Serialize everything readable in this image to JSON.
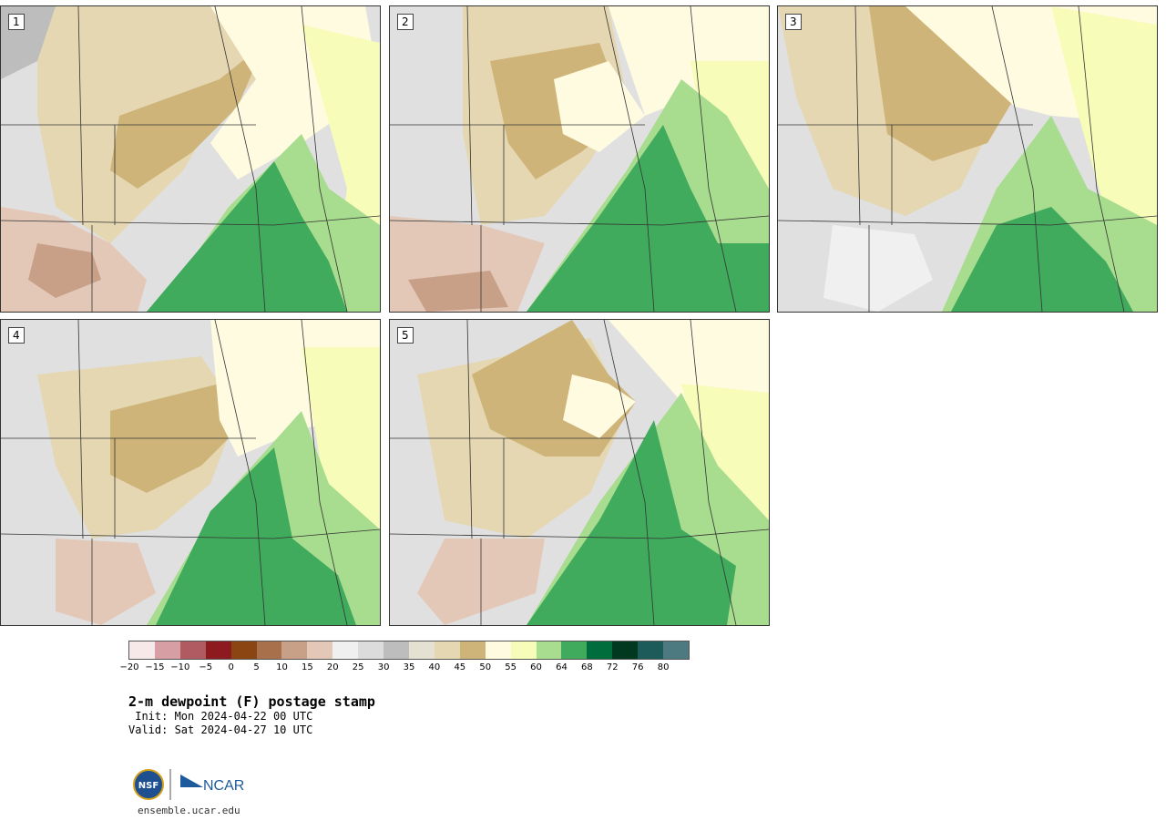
{
  "panels": [
    {
      "label": "1"
    },
    {
      "label": "2"
    },
    {
      "label": "3"
    },
    {
      "label": "4"
    },
    {
      "label": "5"
    }
  ],
  "colorbar": {
    "ticks": [
      "−20",
      "−15",
      "−10",
      "−5",
      "0",
      "5",
      "10",
      "15",
      "20",
      "25",
      "30",
      "35",
      "40",
      "45",
      "50",
      "55",
      "60",
      "64",
      "68",
      "72",
      "76",
      "80"
    ],
    "colors": [
      "#f7e8ea",
      "#d79ea4",
      "#b05a62",
      "#8c1a1f",
      "#8b4513",
      "#a8714c",
      "#c8a088",
      "#e3c8b8",
      "#f0f0f0",
      "#dcdcdc",
      "#bdbdbd",
      "#e4e1d3",
      "#e4d7b1",
      "#cfb47a",
      "#fefbe0",
      "#f7fcb9",
      "#a8dc8e",
      "#41ab5d",
      "#006d3c",
      "#00391f",
      "#1d5a5a",
      "#4d7a80"
    ]
  },
  "title": "2-m dewpoint (F) postage stamp",
  "init_line": " Init: Mon 2024-04-22 00 UTC",
  "valid_line": "Valid: Sat 2024-04-27 10 UTC",
  "logos": {
    "nsf_text": "NSF",
    "ncar_text": "NCAR"
  },
  "url": "ensemble.ucar.edu"
}
